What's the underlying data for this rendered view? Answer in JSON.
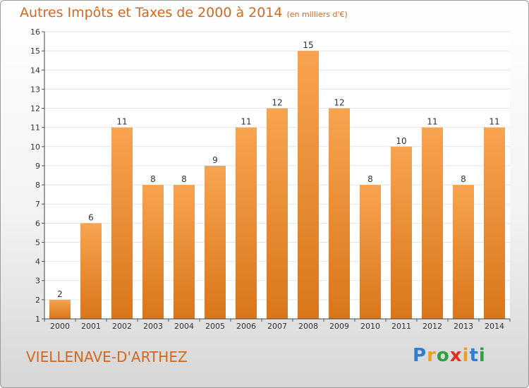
{
  "chart_data": {
    "type": "bar",
    "title": "Autres Impôts et Taxes de 2000 à 2014",
    "unit": "(en milliers d'€)",
    "categories": [
      "2000",
      "2001",
      "2002",
      "2003",
      "2004",
      "2005",
      "2006",
      "2007",
      "2008",
      "2009",
      "2010",
      "2011",
      "2012",
      "2013",
      "2014"
    ],
    "values": [
      2,
      6,
      11,
      8,
      8,
      9,
      11,
      12,
      15,
      12,
      8,
      10,
      11,
      8,
      11
    ],
    "value_labels": [
      "2",
      "6",
      "11",
      "8",
      "8",
      "9",
      "11",
      "12",
      "15",
      "12",
      "8",
      "10",
      "11",
      "8",
      "11"
    ],
    "yticks": [
      "1",
      "2",
      "3",
      "4",
      "5",
      "6",
      "7",
      "8",
      "9",
      "10",
      "11",
      "12",
      "13",
      "14",
      "15",
      "16"
    ],
    "ylim": [
      1,
      16
    ],
    "grid": true,
    "bar_color_top": "#f7a450",
    "bar_color_bottom": "#d9761a",
    "title_color": "#d2691e"
  },
  "commune": "VIELLENAVE-D'ARTHEZ",
  "logo": {
    "letters": [
      "P",
      "r",
      "o",
      "x",
      "i",
      "t",
      "i"
    ],
    "colors": [
      "#2f7fd0",
      "#f0a020",
      "#2fa040",
      "#e03020",
      "#f0a020",
      "#2f7fd0",
      "#2fa040"
    ]
  }
}
